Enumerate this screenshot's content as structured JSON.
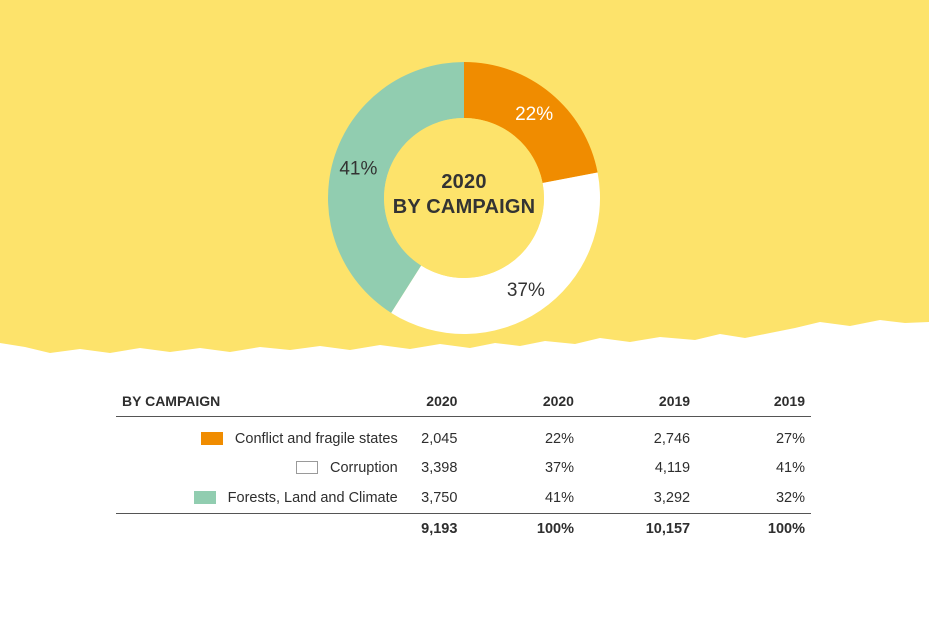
{
  "colors": {
    "background_band": "#fde36b",
    "page": "#ffffff",
    "conflict": "#f08c00",
    "corruption": "#ffffff",
    "forests": "#91cdb0"
  },
  "chart_data": {
    "type": "donut",
    "title_line1": "2020",
    "title_line2": "BY CAMPAIGN",
    "slices": [
      {
        "name": "Conflict and fragile states",
        "value": 22,
        "label": "22%",
        "color": "#f08c00",
        "label_color": "#ffffff"
      },
      {
        "name": "Corruption",
        "value": 37,
        "label": "37%",
        "color": "#ffffff",
        "label_color": "#333333"
      },
      {
        "name": "Forests, Land and Climate",
        "value": 41,
        "label": "41%",
        "color": "#91cdb0",
        "label_color": "#333333"
      }
    ]
  },
  "table": {
    "headers": [
      "BY CAMPAIGN",
      "2020",
      "2020",
      "2019",
      "2019"
    ],
    "rows": [
      {
        "swatch": "#f08c00",
        "label": "Conflict and fragile states",
        "v2020": "2,045",
        "p2020": "22%",
        "v2019": "2,746",
        "p2019": "27%"
      },
      {
        "swatch": "#ffffff",
        "label": "Corruption",
        "v2020": "3,398",
        "p2020": "37%",
        "v2019": "4,119",
        "p2019": "41%"
      },
      {
        "swatch": "#91cdb0",
        "label": "Forests, Land and Climate",
        "v2020": "3,750",
        "p2020": "41%",
        "v2019": "3,292",
        "p2019": "32%"
      }
    ],
    "totals": {
      "v2020": "9,193",
      "p2020": "100%",
      "v2019": "10,157",
      "p2019": "100%"
    }
  }
}
